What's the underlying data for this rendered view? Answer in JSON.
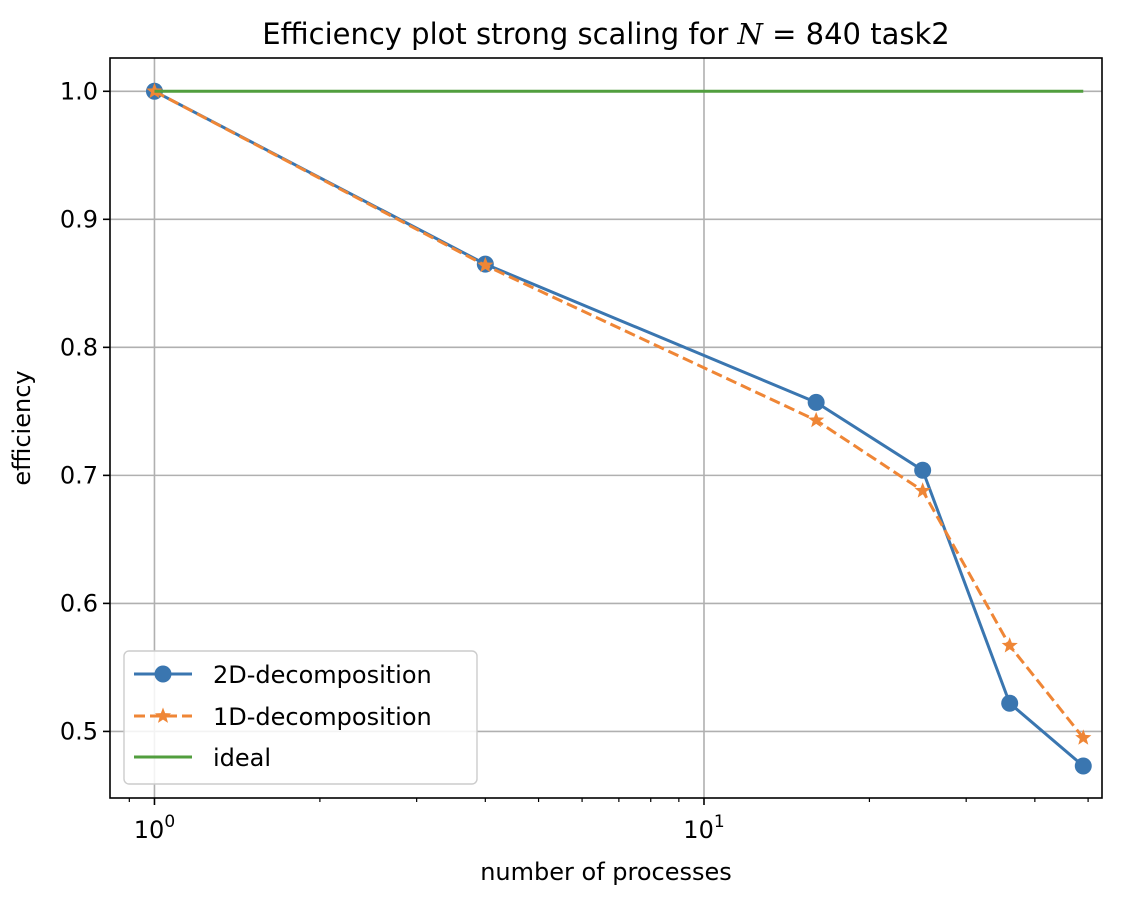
{
  "chart_data": {
    "type": "line",
    "title_prefix": "Efficiency plot strong scaling for ",
    "title_math_var": "N",
    "title_math_rest": " = 840 task2",
    "xlabel": "number of processes",
    "ylabel": "efficiency",
    "xscale": "log",
    "xlim": [
      0.83,
      53
    ],
    "ylim": [
      0.448,
      1.026
    ],
    "xticks": [
      {
        "value": 1,
        "base": "10",
        "exp": "0"
      },
      {
        "value": 10,
        "base": "10",
        "exp": "1"
      }
    ],
    "yticks": [
      {
        "value": 0.5,
        "label": "0.5"
      },
      {
        "value": 0.6,
        "label": "0.6"
      },
      {
        "value": 0.7,
        "label": "0.7"
      },
      {
        "value": 0.8,
        "label": "0.8"
      },
      {
        "value": 0.9,
        "label": "0.9"
      },
      {
        "value": 1.0,
        "label": "1.0"
      }
    ],
    "grid": true,
    "legend_position": "lower-left",
    "series": [
      {
        "name": "2D-decomposition",
        "color": "#3a76b0",
        "marker": "circle",
        "linestyle": "solid",
        "x": [
          1,
          4,
          16,
          25,
          36,
          49
        ],
        "y": [
          1.0,
          0.865,
          0.757,
          0.704,
          0.522,
          0.473
        ]
      },
      {
        "name": "1D-decomposition",
        "color": "#ef8636",
        "marker": "star",
        "linestyle": "dashed",
        "x": [
          1,
          4,
          16,
          25,
          36,
          49
        ],
        "y": [
          1.0,
          0.864,
          0.743,
          0.688,
          0.567,
          0.495
        ]
      },
      {
        "name": "ideal",
        "color": "#519e3e",
        "marker": "none",
        "linestyle": "solid",
        "x": [
          1,
          49
        ],
        "y": [
          1.0,
          1.0
        ]
      }
    ]
  }
}
